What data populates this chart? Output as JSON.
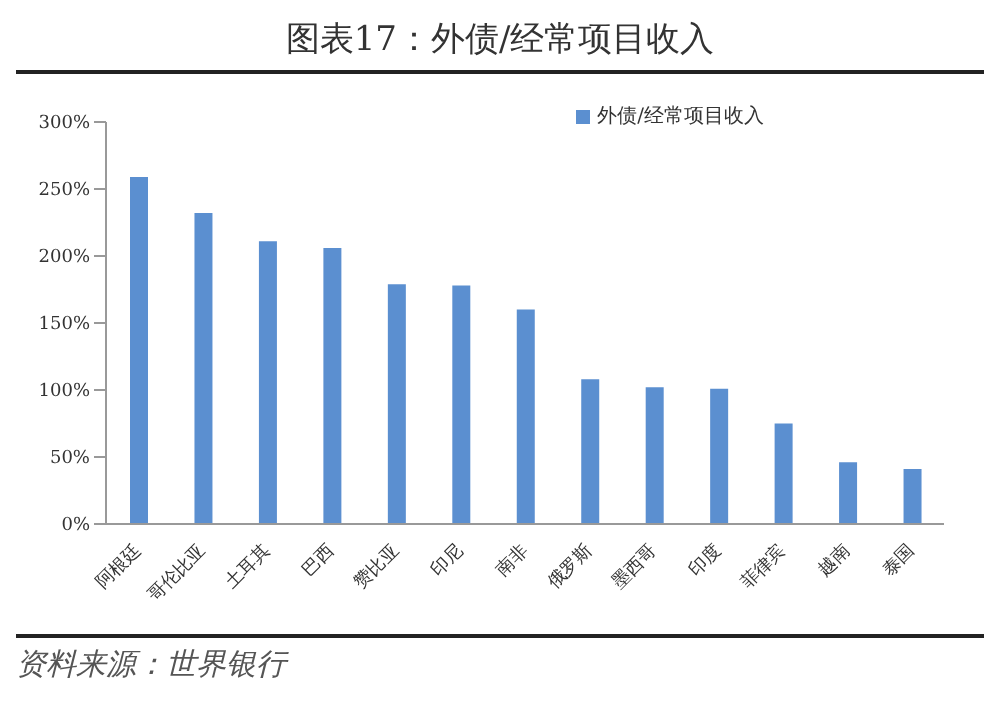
{
  "chart_data": {
    "type": "bar",
    "title": "图表17：外债/经常项目收入",
    "categories": [
      "阿根廷",
      "哥伦比亚",
      "土耳其",
      "巴西",
      "赞比亚",
      "印尼",
      "南非",
      "俄罗斯",
      "墨西哥",
      "印度",
      "菲律宾",
      "越南",
      "泰国"
    ],
    "series": [
      {
        "name": "外债/经常项目收入",
        "color": "#5b8fd0",
        "values": [
          259,
          232,
          211,
          206,
          179,
          178,
          160,
          108,
          102,
          101,
          75,
          46,
          41
        ]
      }
    ],
    "ylim": [
      0,
      300
    ],
    "yticks": [
      {
        "value": 0,
        "label": "0%"
      },
      {
        "value": 50,
        "label": "50%"
      },
      {
        "value": 100,
        "label": "100%"
      },
      {
        "value": 150,
        "label": "150%"
      },
      {
        "value": 200,
        "label": "200%"
      },
      {
        "value": 250,
        "label": "250%"
      },
      {
        "value": 300,
        "label": "300%"
      }
    ],
    "grid": false,
    "legend": "top right",
    "annotations": [
      "资料来源：世界银行"
    ]
  }
}
